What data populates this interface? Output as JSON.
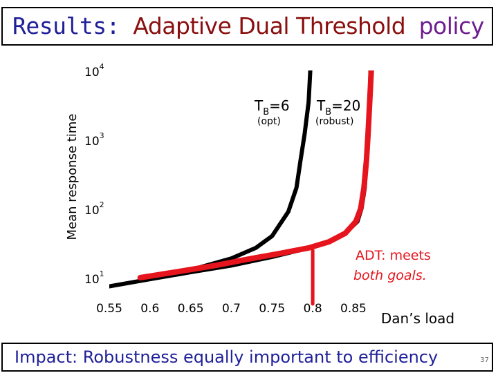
{
  "slide": {
    "title_prefix": "Results:",
    "title_main": "Adaptive Dual Threshold",
    "title_suffix": "policy",
    "impact": "Impact: Robustness equally important to efficiency",
    "slide_number": "37"
  },
  "colors": {
    "title_blue": "#1f1f99",
    "title_red": "#8a0f0f",
    "title_purple": "#6e1d8f",
    "adt_red": "#e6141c",
    "curve_black": "#000000"
  },
  "chart_data": {
    "type": "line",
    "title": "",
    "xlabel": "Dan’s load",
    "ylabel": "Mean response time",
    "xlim": [
      0.55,
      0.89
    ],
    "ylim": [
      10,
      10000
    ],
    "yscale": "log",
    "grid": false,
    "legend": "none",
    "x_ticks": [
      "0.55",
      "0.6",
      "0.65",
      "0.7",
      "0.75",
      "0.8",
      "0.85"
    ],
    "y_ticks": [
      {
        "base": "10",
        "exp": "1"
      },
      {
        "base": "10",
        "exp": "2"
      },
      {
        "base": "10",
        "exp": "3"
      },
      {
        "base": "10",
        "exp": "4"
      }
    ],
    "annotations": {
      "tb6": {
        "t": "T",
        "sub": "B",
        "rest": "=6",
        "note": "(opt)"
      },
      "tb20": {
        "t": "T",
        "sub": "B",
        "rest": "=20",
        "note": "(robust)"
      },
      "adt_line1": "ADT: meets",
      "adt_line2": "both goals."
    },
    "series": [
      {
        "key": "tb6",
        "color": "#000000",
        "points": [
          [
            0.588,
            10
          ],
          [
            0.62,
            11.5
          ],
          [
            0.66,
            14
          ],
          [
            0.7,
            19
          ],
          [
            0.73,
            27
          ],
          [
            0.75,
            40
          ],
          [
            0.77,
            90
          ],
          [
            0.78,
            200
          ],
          [
            0.785,
            500
          ],
          [
            0.79,
            1200
          ],
          [
            0.795,
            3500
          ],
          [
            0.797,
            10000
          ]
        ]
      },
      {
        "key": "tb20",
        "color": "#000000",
        "points": [
          [
            0.55,
            7.5
          ],
          [
            0.6,
            9.5
          ],
          [
            0.65,
            12
          ],
          [
            0.7,
            15
          ],
          [
            0.75,
            20
          ],
          [
            0.79,
            26
          ],
          [
            0.82,
            33
          ],
          [
            0.84,
            44
          ],
          [
            0.855,
            65
          ],
          [
            0.86,
            100
          ],
          [
            0.864,
            200
          ],
          [
            0.866,
            500
          ],
          [
            0.868,
            1200
          ],
          [
            0.87,
            3500
          ],
          [
            0.871,
            10000
          ]
        ]
      },
      {
        "key": "adt",
        "color": "#e6141c",
        "points": [
          [
            0.588,
            10
          ],
          [
            0.63,
            12
          ],
          [
            0.68,
            15
          ],
          [
            0.72,
            18.5
          ],
          [
            0.76,
            22.5
          ],
          [
            0.795,
            27
          ],
          [
            0.82,
            33
          ],
          [
            0.84,
            44
          ],
          [
            0.853,
            65
          ],
          [
            0.859,
            100
          ],
          [
            0.863,
            200
          ],
          [
            0.866,
            500
          ],
          [
            0.868,
            1200
          ],
          [
            0.87,
            3500
          ],
          [
            0.872,
            10000
          ]
        ]
      }
    ],
    "pointer": {
      "x": 0.8,
      "y_from": 5,
      "y_to": 25
    }
  }
}
